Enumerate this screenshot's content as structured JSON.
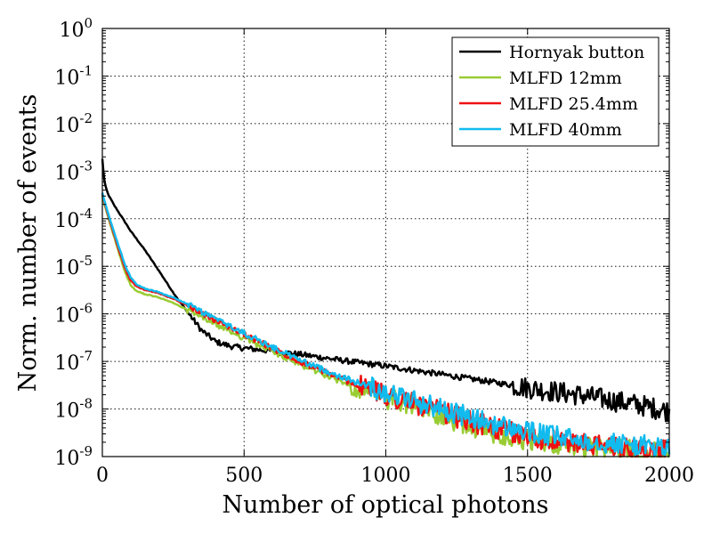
{
  "chart_data": {
    "type": "line",
    "xlabel": "Number of optical photons",
    "ylabel": "Norm. number of events",
    "xlim": [
      0,
      2000
    ],
    "ylim": [
      1e-09,
      1
    ],
    "yscale": "log",
    "grid": true,
    "legend_placement": "top-right",
    "x_ticks": [
      {
        "value": 0,
        "label": "0"
      },
      {
        "value": 500,
        "label": "500"
      },
      {
        "value": 1000,
        "label": "1000"
      },
      {
        "value": 1500,
        "label": "1500"
      },
      {
        "value": 2000,
        "label": "2000"
      }
    ],
    "y_ticks": [
      {
        "exp": 0,
        "base": "10",
        "sup": "0"
      },
      {
        "exp": -1,
        "base": "10",
        "sup": "-1"
      },
      {
        "exp": -2,
        "base": "10",
        "sup": "-2"
      },
      {
        "exp": -3,
        "base": "10",
        "sup": "-3"
      },
      {
        "exp": -4,
        "base": "10",
        "sup": "-4"
      },
      {
        "exp": -5,
        "base": "10",
        "sup": "-5"
      },
      {
        "exp": -6,
        "base": "10",
        "sup": "-6"
      },
      {
        "exp": -7,
        "base": "10",
        "sup": "-7"
      },
      {
        "exp": -8,
        "base": "10",
        "sup": "-8"
      },
      {
        "exp": -9,
        "base": "10",
        "sup": "-9"
      }
    ],
    "series": [
      {
        "name": "Hornyak button",
        "color": "#000000",
        "x": [
          0,
          5,
          10,
          20,
          40,
          60,
          80,
          100,
          150,
          200,
          250,
          300,
          350,
          400,
          450,
          500,
          600,
          700,
          800,
          900,
          1000,
          1100,
          1200,
          1300,
          1400,
          1500,
          1600,
          1700,
          1800,
          1900,
          2000
        ],
        "y": [
          0.0018,
          0.0008,
          0.0005,
          0.00033,
          0.0002,
          0.00013,
          8.5e-05,
          5.5e-05,
          2.2e-05,
          8e-06,
          2.8e-06,
          1.1e-06,
          4.5e-07,
          2.6e-07,
          2.1e-07,
          1.9e-07,
          1.65e-07,
          1.4e-07,
          1.15e-07,
          9.5e-08,
          8e-08,
          6.5e-08,
          5.3e-08,
          4.3e-08,
          3.5e-08,
          2.8e-08,
          2.3e-08,
          1.9e-08,
          1.5e-08,
          1.2e-08,
          9e-09
        ]
      },
      {
        "name": "MLFD 12mm",
        "color": "#99cc33",
        "x": [
          0,
          10,
          20,
          40,
          60,
          80,
          100,
          120,
          150,
          200,
          250,
          300,
          350,
          400,
          450,
          500,
          600,
          700,
          800,
          900,
          1000,
          1100,
          1200,
          1300,
          1400,
          1500,
          1600,
          1700,
          1800,
          1900,
          2000
        ],
        "y": [
          0.0003,
          0.00018,
          0.00011,
          4.5e-05,
          1.8e-05,
          7.5e-06,
          4e-06,
          3e-06,
          2.6e-06,
          2.2e-06,
          1.7e-06,
          1.2e-06,
          8.5e-07,
          6e-07,
          4.3e-07,
          3.1e-07,
          1.6e-07,
          8.5e-08,
          4.8e-08,
          2.8e-08,
          1.7e-08,
          1.1e-08,
          7e-09,
          4.5e-09,
          3e-09,
          2.2e-09,
          1.8e-09,
          1.6e-09,
          1.4e-09,
          1.3e-09,
          1.2e-09
        ]
      },
      {
        "name": "MLFD 25.4mm",
        "color": "#ee1111",
        "x": [
          0,
          10,
          20,
          40,
          60,
          80,
          100,
          120,
          150,
          200,
          250,
          300,
          350,
          400,
          450,
          500,
          600,
          700,
          800,
          900,
          1000,
          1100,
          1200,
          1300,
          1400,
          1500,
          1600,
          1700,
          1800,
          1900,
          2000
        ],
        "y": [
          0.00033,
          0.0002,
          0.00012,
          5e-05,
          2.1e-05,
          9e-06,
          5e-06,
          3.8e-06,
          3.2e-06,
          2.7e-06,
          2.1e-06,
          1.5e-06,
          1.05e-06,
          7.3e-07,
          5.2e-07,
          3.7e-07,
          1.9e-07,
          9.8e-08,
          5.5e-08,
          3.2e-08,
          2e-08,
          1.3e-08,
          8.5e-09,
          5.5e-09,
          3.7e-09,
          2.7e-09,
          2.1e-09,
          1.8e-09,
          1.6e-09,
          1.45e-09,
          1.3e-09
        ]
      },
      {
        "name": "MLFD 40mm",
        "color": "#11bbee",
        "x": [
          0,
          10,
          20,
          40,
          60,
          80,
          100,
          120,
          150,
          200,
          250,
          300,
          350,
          400,
          450,
          500,
          600,
          700,
          800,
          900,
          1000,
          1100,
          1200,
          1300,
          1400,
          1500,
          1600,
          1700,
          1800,
          1900,
          2000
        ],
        "y": [
          0.00035,
          0.00021,
          0.00013,
          5.5e-05,
          2.4e-05,
          1.05e-05,
          5.8e-06,
          4.2e-06,
          3.4e-06,
          2.85e-06,
          2.2e-06,
          1.6e-06,
          1.12e-06,
          7.8e-07,
          5.5e-07,
          3.9e-07,
          2e-07,
          1.05e-07,
          6e-08,
          3.6e-08,
          2.3e-08,
          1.5e-08,
          1e-08,
          6.5e-09,
          4.5e-09,
          3.3e-09,
          2.6e-09,
          2.2e-09,
          1.9e-09,
          1.7e-09,
          1.5e-09
        ]
      }
    ]
  }
}
